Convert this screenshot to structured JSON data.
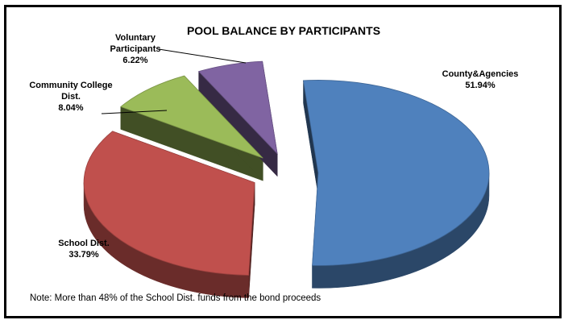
{
  "chart_data": {
    "type": "pie",
    "style": "3d-exploded",
    "title": "POOL BALANCE BY PARTICIPANTS",
    "slices": [
      {
        "label_lines": [
          "County&Agencies",
          "51.94%"
        ],
        "category": "County&Agencies",
        "value": 51.94,
        "color": "#4f81bd"
      },
      {
        "label_lines": [
          "School Dist.",
          "33.79%"
        ],
        "category": "School Dist.",
        "value": 33.79,
        "color": "#c0504d"
      },
      {
        "label_lines": [
          "Community College",
          "Dist.",
          "8.04%"
        ],
        "category": "Community College Dist.",
        "value": 8.04,
        "color": "#9bbb59"
      },
      {
        "label_lines": [
          "Voluntary",
          "Participants",
          "6.22%"
        ],
        "category": "Voluntary Participants",
        "value": 6.22,
        "color": "#8064a2"
      }
    ],
    "note": "Note: More than 48% of the School Dist. funds from the bond proceeds"
  }
}
